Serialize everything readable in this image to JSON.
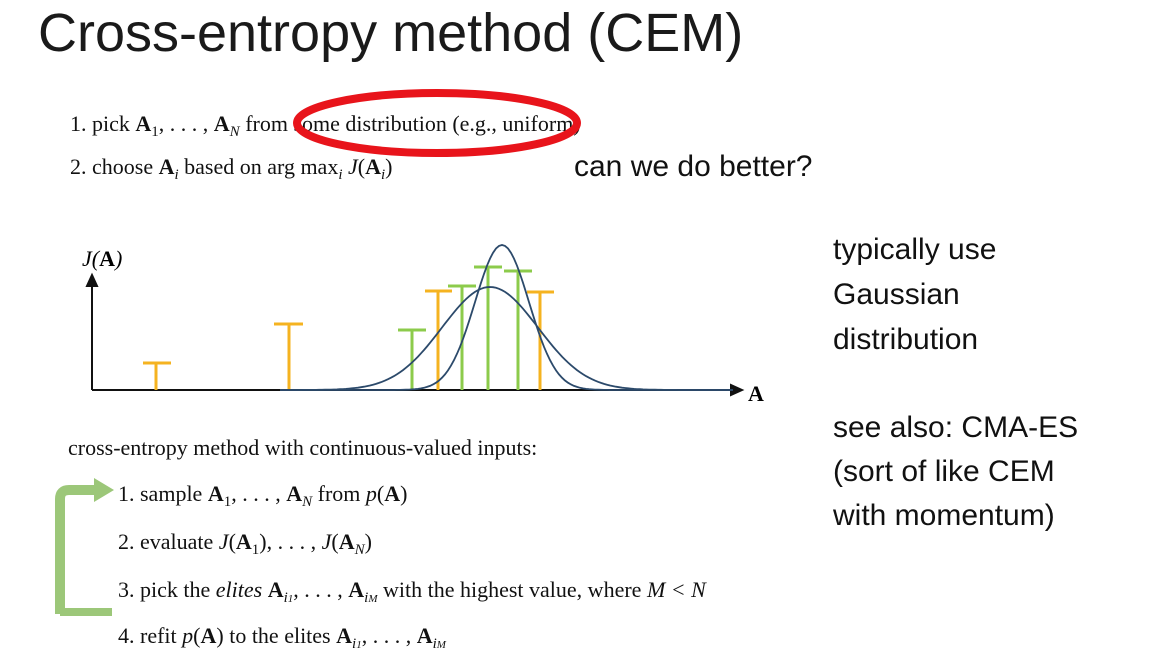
{
  "title": "Cross-entropy method (CEM)",
  "first_list": {
    "step1": {
      "num": "1.",
      "pick": "pick",
      "tail": "from some distribution (e.g., uniform)"
    },
    "step2": {
      "num": "2.",
      "text": "choose",
      "based": "based on arg max",
      "sub_i": "i",
      "func": "J("
    }
  },
  "annotation": "can we do better?",
  "plot": {
    "ylabel": "J(A)",
    "xlabel": "A"
  },
  "side_note_1": [
    "typically use",
    "Gaussian",
    "distribution"
  ],
  "side_note_2": [
    "see also: CMA-ES",
    "(sort of like CEM",
    "with momentum)"
  ],
  "second_intro": "cross-entropy method with continuous-valued inputs:",
  "second_list": {
    "s1": {
      "num": "1.",
      "pre": "sample",
      "mid": "from",
      "post": "p(A)"
    },
    "s2": {
      "num": "2.",
      "pre": "evaluate"
    },
    "s3": {
      "num": "3.",
      "pre": "pick the",
      "elites": "elites",
      "post": "with the highest value, where",
      "cond": "M < N"
    },
    "s4": {
      "num": "4.",
      "pre": "refit",
      "post": "to the elites"
    }
  },
  "colors": {
    "red": "#e8141b",
    "green": "#8ccb4b",
    "orange": "#f5b320",
    "blue": "#2c4a6b",
    "arrow": "#9cc779"
  }
}
